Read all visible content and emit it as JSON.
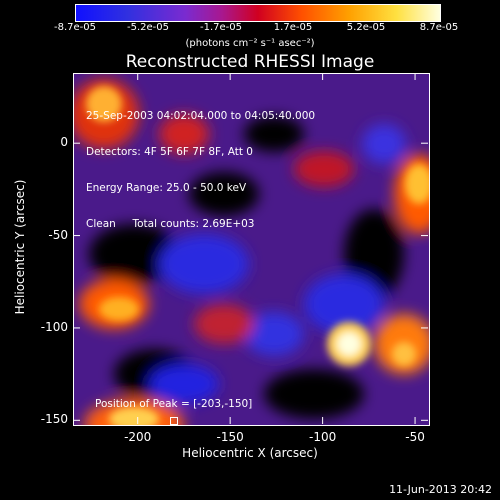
{
  "colorbar": {
    "ticks": [
      "-8.7e-05",
      "-5.2e-05",
      "-1.7e-05",
      "1.7e-05",
      "5.2e-05",
      "8.7e-05"
    ],
    "unit_label": "(photons cm⁻² s⁻¹ asec⁻²)"
  },
  "chart_data": {
    "type": "heatmap",
    "title": "Reconstructed RHESSI Image",
    "xlabel": "Heliocentric X (arcsec)",
    "ylabel": "Heliocentric Y (arcsec)",
    "xlim": [
      -235,
      -43
    ],
    "ylim": [
      -152,
      38
    ],
    "x_ticks": [
      -200,
      -150,
      -100,
      -50
    ],
    "y_ticks": [
      0,
      -50,
      -100,
      -150
    ],
    "value_range": [
      -8.7e-05,
      8.7e-05
    ],
    "colormap": "blue-purple-red-yellow-white",
    "annotations": [
      "25-Sep-2003 04:02:04.000 to 04:05:40.000",
      "Detectors: 4F 5F 6F 7F 8F, Att 0",
      "Energy Range: 25.0 - 50.0 keV",
      "Clean     Total counts: 2.69E+03"
    ],
    "peak_label": "Position of Peak = [-203,-150]",
    "peak_position": [
      -203,
      -150
    ]
  },
  "footer": {
    "date": "11-Jun-2013 20:42"
  }
}
